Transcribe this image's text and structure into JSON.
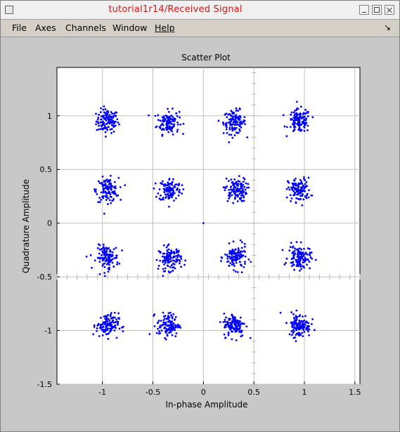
{
  "window": {
    "title": "tutorial1r14/Received Signal",
    "menus": [
      "File",
      "Axes",
      "Channels",
      "Window",
      "Help"
    ]
  },
  "chart_data": {
    "type": "scatter",
    "title": "Scatter Plot",
    "xlabel": "In-phase Amplitude",
    "ylabel": "Quadrature Amplitude",
    "xlim": [
      -1.45,
      1.55
    ],
    "ylim": [
      -1.5,
      1.45
    ],
    "xticks": [
      -1,
      -0.5,
      0,
      0.5,
      1,
      1.5
    ],
    "yticks": [
      -1.5,
      -1,
      -0.5,
      0,
      0.5,
      1
    ],
    "grid": true,
    "marker_color": "#0000ff",
    "series": [
      {
        "constellation_points": [
          [
            -0.95,
            0.95
          ],
          [
            -0.35,
            0.94
          ],
          [
            0.31,
            0.94
          ],
          [
            0.95,
            0.95
          ],
          [
            -0.95,
            0.31
          ],
          [
            -0.33,
            0.31
          ],
          [
            0.32,
            0.31
          ],
          [
            0.95,
            0.31
          ],
          [
            -0.95,
            -0.32
          ],
          [
            -0.33,
            -0.33
          ],
          [
            0.32,
            -0.32
          ],
          [
            0.95,
            -0.32
          ],
          [
            -0.95,
            -0.95
          ],
          [
            -0.35,
            -0.95
          ],
          [
            0.31,
            -0.95
          ],
          [
            0.95,
            -0.95
          ]
        ],
        "spread": 0.055,
        "points_per_cluster": 120,
        "outliers": [
          [
            0,
            0
          ]
        ]
      }
    ]
  }
}
